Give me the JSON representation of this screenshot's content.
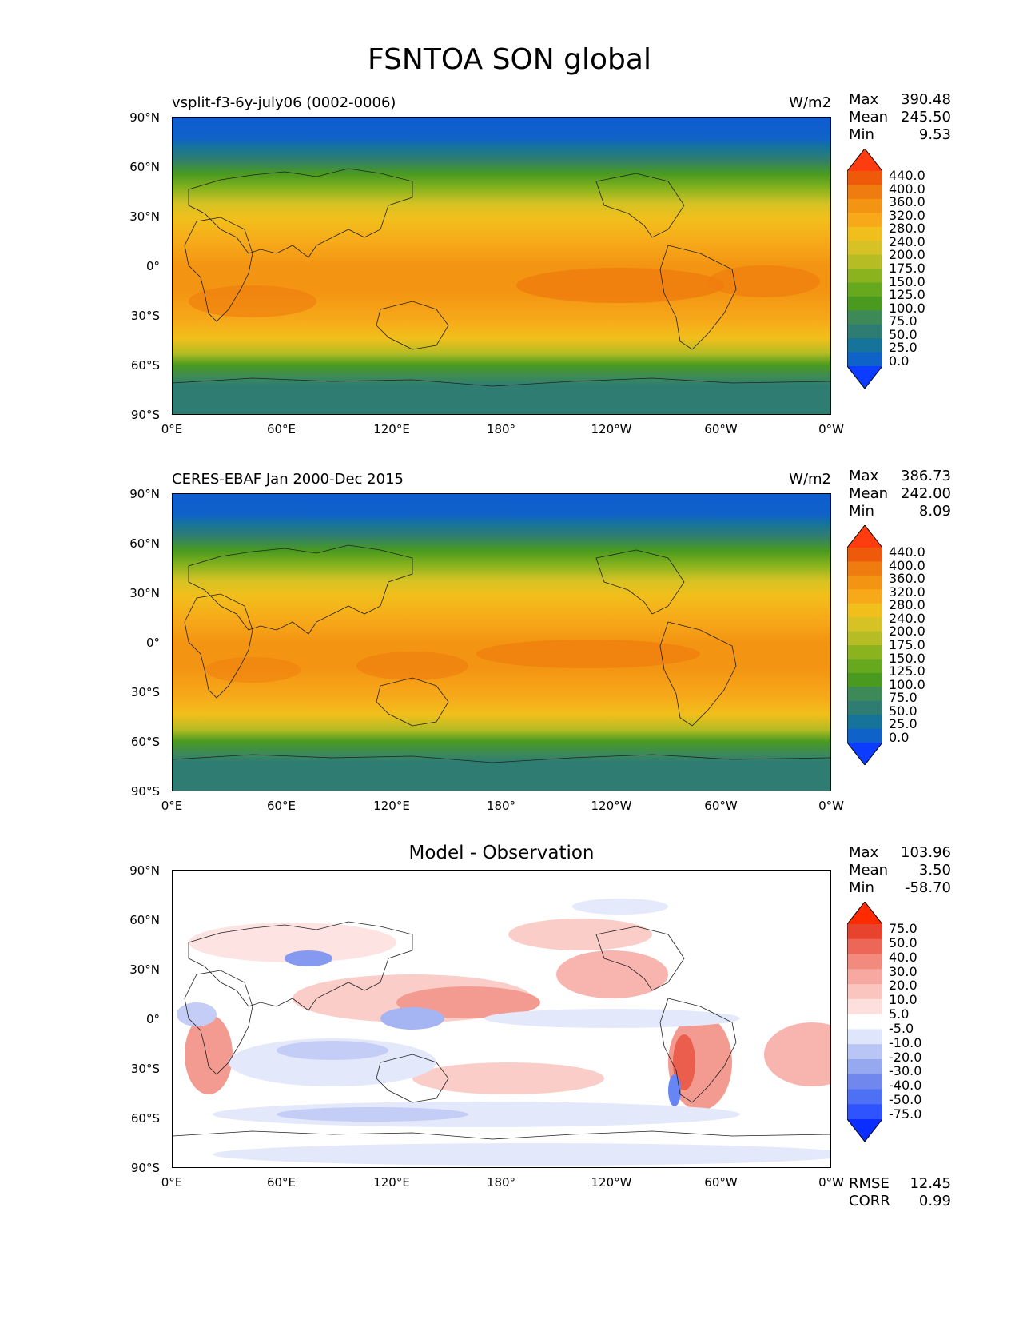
{
  "title": "FSNTOA SON global",
  "x_ticks": [
    "0°E",
    "60°E",
    "120°E",
    "180°",
    "120°W",
    "60°W",
    "0°W"
  ],
  "y_ticks": [
    "90°N",
    "60°N",
    "30°N",
    "0°",
    "30°S",
    "60°S",
    "90°S"
  ],
  "stat_labels": {
    "max": "Max",
    "mean": "Mean",
    "min": "Min",
    "rmse": "RMSE",
    "corr": "CORR"
  },
  "panels": [
    {
      "title_left": "vsplit-f3-6y-july06 (0002-0006)",
      "units": "W/m2",
      "max": "390.48",
      "mean": "245.50",
      "min": "9.53",
      "colorbar_labels": [
        "440.0",
        "400.0",
        "360.0",
        "320.0",
        "280.0",
        "240.0",
        "200.0",
        "175.0",
        "150.0",
        "125.0",
        "100.0",
        "75.0",
        "50.0",
        "25.0",
        "0.0"
      ]
    },
    {
      "title_left": "CERES-EBAF Jan 2000-Dec 2015",
      "units": "W/m2",
      "max": "386.73",
      "mean": "242.00",
      "min": "8.09",
      "colorbar_labels": [
        "440.0",
        "400.0",
        "360.0",
        "320.0",
        "280.0",
        "240.0",
        "200.0",
        "175.0",
        "150.0",
        "125.0",
        "100.0",
        "75.0",
        "50.0",
        "25.0",
        "0.0"
      ]
    },
    {
      "title_center": "Model - Observation",
      "max": "103.96",
      "mean": "3.50",
      "min": "-58.70",
      "rmse": "12.45",
      "corr": "0.99",
      "colorbar_labels": [
        "75.0",
        "50.0",
        "40.0",
        "30.0",
        "20.0",
        "10.0",
        "5.0",
        "-5.0",
        "-10.0",
        "-20.0",
        "-30.0",
        "-40.0",
        "-50.0",
        "-75.0"
      ]
    }
  ],
  "colors": {
    "abs_scale": [
      "#0b3cff",
      "#0f62c8",
      "#16749a",
      "#2f7d72",
      "#3d8a58",
      "#4a9a20",
      "#66a81e",
      "#8ab31e",
      "#b5bc24",
      "#d6c224",
      "#f1bf1b",
      "#f7a91a",
      "#f39412",
      "#ef7c0e",
      "#ee5a0a",
      "#ff3b10"
    ],
    "diff_scale": [
      "#0b2dff",
      "#2f54ff",
      "#4e70f5",
      "#7088ee",
      "#96a8f0",
      "#b9c5f5",
      "#dfe5fb",
      "#ffffff",
      "#fde0dd",
      "#fbc5bf",
      "#f7a8a0",
      "#f38a7e",
      "#ed6758",
      "#e8432f",
      "#ff2a00"
    ]
  }
}
